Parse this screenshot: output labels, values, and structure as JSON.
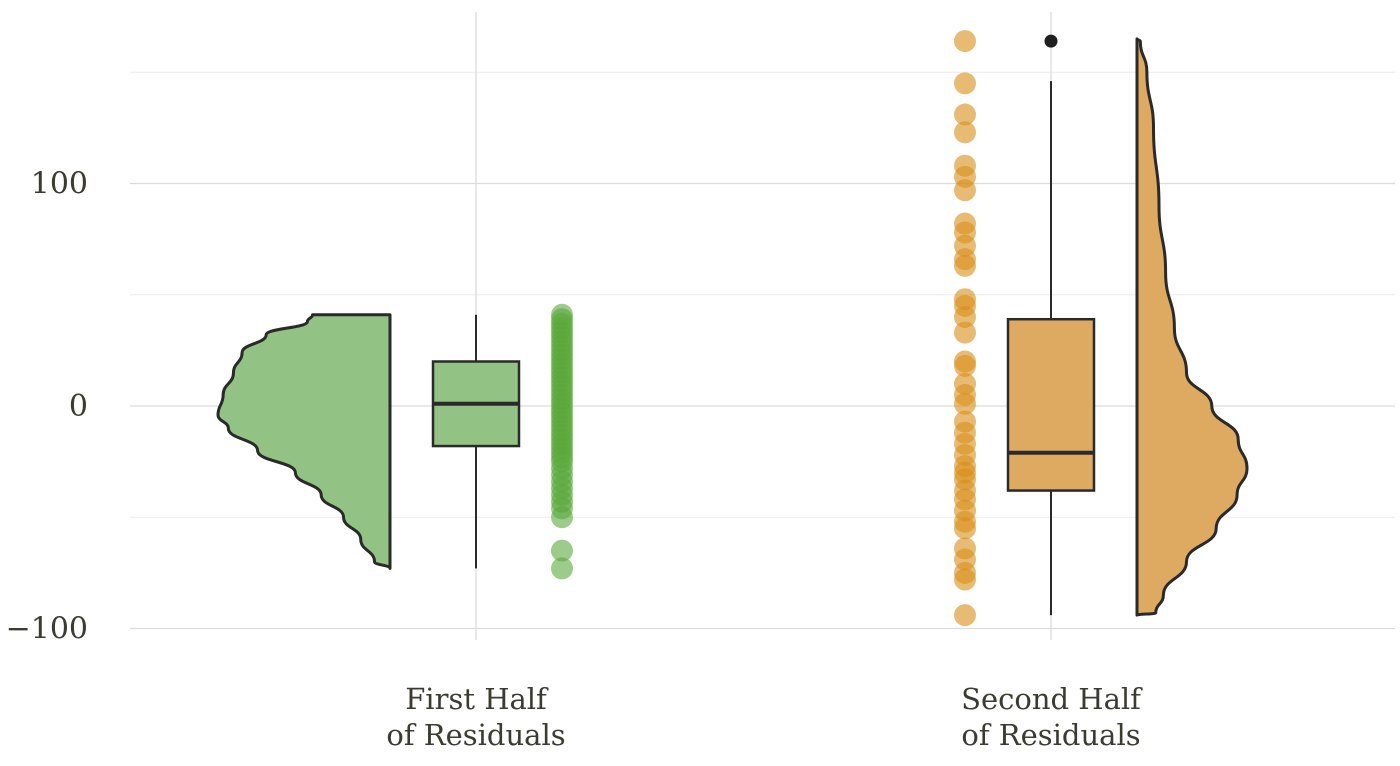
{
  "chart_data": {
    "type": "raincloud",
    "title": "",
    "xlabel": "",
    "ylabel": "",
    "ylim": [
      -108,
      176
    ],
    "grid": true,
    "y_ticks": [
      {
        "value": 100,
        "label": "100"
      },
      {
        "value": 0,
        "label": "0"
      },
      {
        "value": -100,
        "label": "−100"
      }
    ],
    "groups": [
      {
        "label_lines": [
          "First Half",
          "of Residuals"
        ],
        "color": "#93c384",
        "point_color": "#5aa83c",
        "violin_side": "left",
        "points_side": "right",
        "box": {
          "whisker_low": -73,
          "q1": -18,
          "median": 1,
          "q3": 20,
          "whisker_high": 41,
          "outliers": []
        },
        "density": [
          {
            "y": -73,
            "w": 0.0
          },
          {
            "y": -70,
            "w": 0.09
          },
          {
            "y": -60,
            "w": 0.17
          },
          {
            "y": -50,
            "w": 0.27
          },
          {
            "y": -40,
            "w": 0.4
          },
          {
            "y": -30,
            "w": 0.55
          },
          {
            "y": -20,
            "w": 0.77
          },
          {
            "y": -10,
            "w": 0.94
          },
          {
            "y": -4,
            "w": 1.0
          },
          {
            "y": 5,
            "w": 0.97
          },
          {
            "y": 15,
            "w": 0.91
          },
          {
            "y": 24,
            "w": 0.86
          },
          {
            "y": 32,
            "w": 0.72
          },
          {
            "y": 38,
            "w": 0.48
          },
          {
            "y": 41,
            "w": 0.45
          }
        ],
        "points": [
          41,
          39,
          37,
          35,
          33,
          31,
          29,
          27,
          25,
          23,
          21,
          19,
          17,
          15,
          13,
          11,
          9,
          7,
          5,
          3,
          1,
          -1,
          -3,
          -5,
          -7,
          -9,
          -11,
          -13,
          -15,
          -17,
          -19,
          -21,
          -23,
          -25,
          -28,
          -31,
          -34,
          -37,
          -40,
          -43,
          -46,
          -50,
          -65,
          -73
        ]
      },
      {
        "label_lines": [
          "Second Half",
          "of Residuals"
        ],
        "color": "#deaa62",
        "point_color": "#d98d19",
        "violin_side": "right",
        "points_side": "left",
        "box": {
          "whisker_low": -94,
          "q1": -38,
          "median": -21,
          "q3": 39,
          "whisker_high": 146,
          "outliers": [
            164
          ]
        },
        "density": [
          {
            "y": -94,
            "w": 0.0
          },
          {
            "y": -93,
            "w": 0.17
          },
          {
            "y": -85,
            "w": 0.24
          },
          {
            "y": -70,
            "w": 0.45
          },
          {
            "y": -55,
            "w": 0.72
          },
          {
            "y": -40,
            "w": 0.91
          },
          {
            "y": -28,
            "w": 1.0
          },
          {
            "y": -15,
            "w": 0.92
          },
          {
            "y": 0,
            "w": 0.68
          },
          {
            "y": 15,
            "w": 0.45
          },
          {
            "y": 35,
            "w": 0.34
          },
          {
            "y": 60,
            "w": 0.26
          },
          {
            "y": 90,
            "w": 0.2
          },
          {
            "y": 125,
            "w": 0.15
          },
          {
            "y": 150,
            "w": 0.09
          },
          {
            "y": 164,
            "w": 0.03
          },
          {
            "y": 165,
            "w": 0.0
          }
        ],
        "points": [
          164,
          145,
          131,
          123,
          108,
          103,
          97,
          82,
          78,
          72,
          66,
          63,
          48,
          45,
          40,
          33,
          20,
          18,
          10,
          5,
          1,
          -7,
          -12,
          -17,
          -22,
          -27,
          -30,
          -33,
          -38,
          -42,
          -47,
          -52,
          -55,
          -64,
          -69,
          -75,
          -78,
          -94
        ]
      }
    ]
  }
}
